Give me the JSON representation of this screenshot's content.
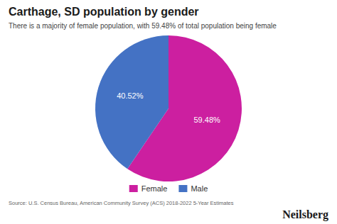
{
  "chart_data": {
    "type": "pie",
    "title": "Carthage, SD population by gender",
    "subtitle": "There is a majority of female population, with 59.48% of total population being female",
    "categories": [
      "Female",
      "Male"
    ],
    "values": [
      59.48,
      40.52
    ],
    "value_labels": [
      "59.48%",
      "40.52%"
    ],
    "colors": [
      "#CC1FA0",
      "#4472C4"
    ],
    "data_labels": true,
    "legend": "bottom",
    "annotations": [
      "Source: U.S. Census Bureau, American Community Survey (ACS) 2018-2022 5-Year Estimates",
      "Neilsberg"
    ]
  }
}
